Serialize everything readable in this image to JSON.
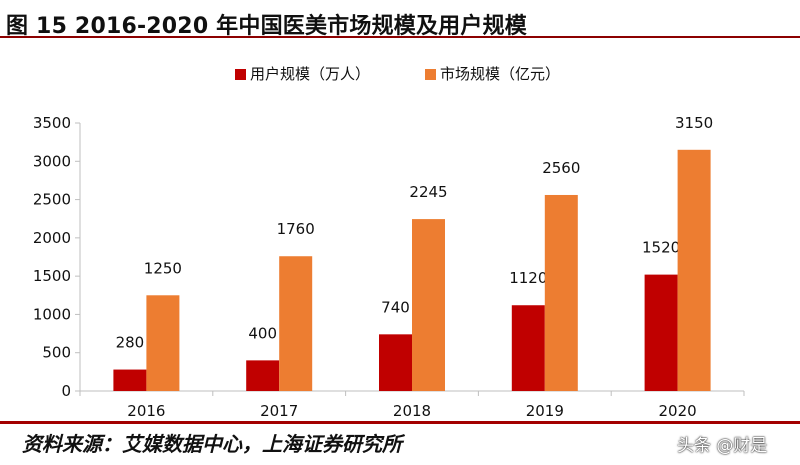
{
  "header": {
    "title": "图 15 2016-2020 年中国医美市场规模及用户规模"
  },
  "footer": {
    "source": "资料来源：艾媒数据中心，上海证券研究所",
    "watermark": "头条 @财是"
  },
  "colors": {
    "accent": "#8c0000",
    "series_user": "#c00000",
    "series_market": "#ed7d31",
    "axis": "#bfbfbf"
  },
  "chart_data": {
    "type": "bar",
    "categories": [
      "2016",
      "2017",
      "2018",
      "2019",
      "2020"
    ],
    "series": [
      {
        "name": "用户规模（万人）",
        "values": [
          280,
          400,
          740,
          1120,
          1520
        ],
        "color": "#c00000"
      },
      {
        "name": "市场规模（亿元）",
        "values": [
          1250,
          1760,
          2245,
          2560,
          3150
        ],
        "color": "#ed7d31"
      }
    ],
    "yticks": [
      0,
      500,
      1000,
      1500,
      2000,
      2500,
      3000,
      3500
    ],
    "ylim": [
      0,
      3500
    ],
    "title": "",
    "xlabel": "",
    "ylabel": "",
    "legend_position": "top-center",
    "grid": false
  }
}
